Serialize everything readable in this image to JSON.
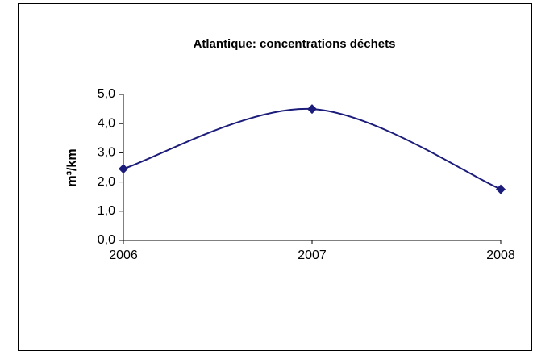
{
  "chart_data": {
    "type": "line",
    "title": "Atlantique: concentrations déchets",
    "y_label": "m³/km",
    "categories": [
      "2006",
      "2007",
      "2008"
    ],
    "series": [
      {
        "name": "Atlantique",
        "color": "#1c1c7a",
        "values": [
          2.45,
          4.5,
          1.75
        ]
      }
    ],
    "smooth": true,
    "ylim": [
      0,
      5
    ],
    "yticks": [
      {
        "value": 0,
        "label": "0,0"
      },
      {
        "value": 1,
        "label": "1,0"
      },
      {
        "value": 2,
        "label": "2,0"
      },
      {
        "value": 3,
        "label": "3,0"
      },
      {
        "value": 4,
        "label": "4,0"
      },
      {
        "value": 5,
        "label": "5,0"
      }
    ]
  }
}
